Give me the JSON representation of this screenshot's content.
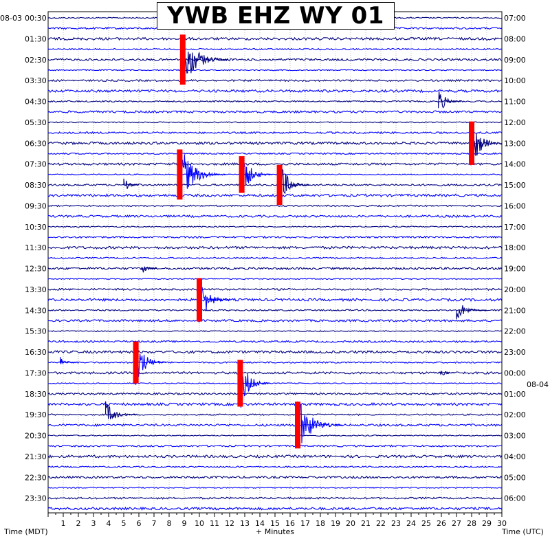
{
  "chart_data": {
    "type": "helicorder",
    "title": "YWB EHZ WY 01",
    "xlabel": "+ Minutes",
    "xlim": [
      0,
      30
    ],
    "x_ticks": [
      1,
      2,
      3,
      4,
      5,
      6,
      7,
      8,
      9,
      10,
      11,
      12,
      13,
      14,
      15,
      16,
      17,
      18,
      19,
      20,
      21,
      22,
      23,
      24,
      25,
      26,
      27,
      28,
      29,
      30
    ],
    "left_axis_label": "Time (MDT)",
    "right_axis_label": "Time (UTC)",
    "start_date_left": "08-03",
    "date_change_right": "08-04",
    "left_hour_labels": [
      "00:30",
      "01:30",
      "02:30",
      "03:30",
      "04:30",
      "05:30",
      "06:30",
      "07:30",
      "08:30",
      "09:30",
      "10:30",
      "11:30",
      "12:30",
      "13:30",
      "14:30",
      "15:30",
      "16:30",
      "17:30",
      "18:30",
      "19:30",
      "20:30",
      "21:30",
      "22:30",
      "23:30"
    ],
    "right_hour_labels": [
      "07:00",
      "08:00",
      "09:00",
      "10:00",
      "11:00",
      "12:00",
      "13:00",
      "14:00",
      "15:00",
      "16:00",
      "17:00",
      "18:00",
      "19:00",
      "20:00",
      "21:00",
      "22:00",
      "23:00",
      "00:00",
      "01:00",
      "02:00",
      "03:00",
      "04:00",
      "05:00",
      "06:00"
    ],
    "trace_colors": [
      "#000080",
      "#0000ff"
    ],
    "clip_color": "#ff0000",
    "grid": "dotted",
    "rows_per_hour": 2,
    "events": [
      {
        "row": 4,
        "minute": 8.9,
        "amplitude": 3.0,
        "duration": 3.0,
        "clipped": true
      },
      {
        "row": 8,
        "minute": 25.8,
        "amplitude": 1.4,
        "duration": 1.5
      },
      {
        "row": 12,
        "minute": 28.0,
        "amplitude": 2.6,
        "duration": 2.0,
        "clipped": true
      },
      {
        "row": 15,
        "minute": 8.7,
        "amplitude": 3.0,
        "duration": 3.0,
        "clipped": true
      },
      {
        "row": 15,
        "minute": 12.8,
        "amplitude": 2.2,
        "duration": 2.0,
        "clipped": true
      },
      {
        "row": 16,
        "minute": 15.3,
        "amplitude": 2.4,
        "duration": 2.0,
        "clipped": true
      },
      {
        "row": 16,
        "minute": 5.0,
        "amplitude": 1.0,
        "duration": 1.0
      },
      {
        "row": 24,
        "minute": 6.2,
        "amplitude": 0.8,
        "duration": 1.0
      },
      {
        "row": 27,
        "minute": 10.0,
        "amplitude": 2.6,
        "duration": 2.0,
        "clipped": true
      },
      {
        "row": 28,
        "minute": 27.0,
        "amplitude": 1.2,
        "duration": 2.0
      },
      {
        "row": 33,
        "minute": 5.8,
        "amplitude": 2.5,
        "duration": 2.0,
        "clipped": true
      },
      {
        "row": 33,
        "minute": 0.8,
        "amplitude": 0.8,
        "duration": 1.0
      },
      {
        "row": 34,
        "minute": 25.9,
        "amplitude": 0.6,
        "duration": 1.0
      },
      {
        "row": 35,
        "minute": 12.7,
        "amplitude": 2.8,
        "duration": 2.0,
        "clipped": true
      },
      {
        "row": 38,
        "minute": 3.8,
        "amplitude": 1.3,
        "duration": 2.0
      },
      {
        "row": 39,
        "minute": 16.5,
        "amplitude": 2.8,
        "duration": 3.0,
        "clipped": true
      }
    ]
  }
}
